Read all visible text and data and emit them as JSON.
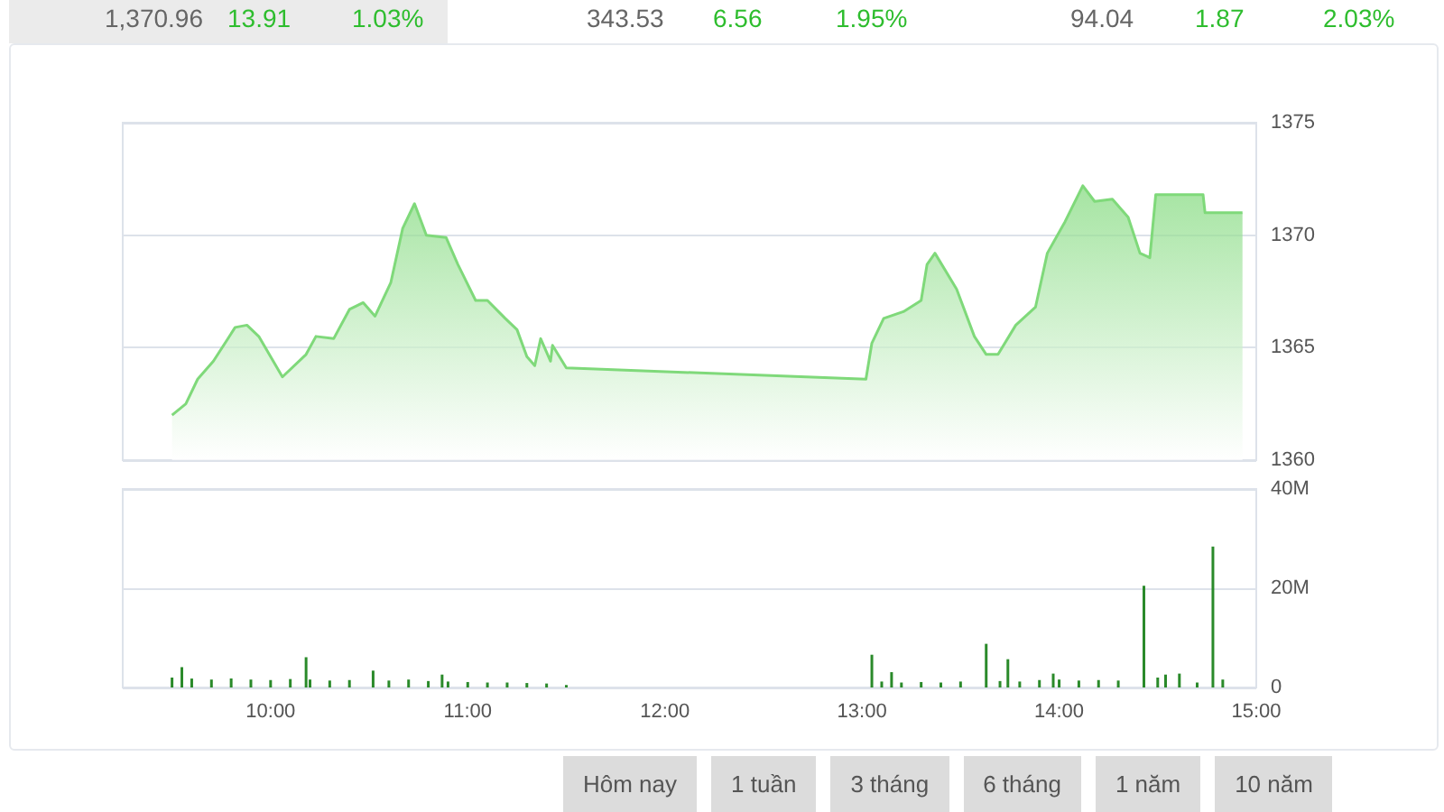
{
  "chart_data": [
    {
      "type": "area",
      "x": [
        9.5,
        9.57,
        9.63,
        9.71,
        9.82,
        9.88,
        9.94,
        10.06,
        10.18,
        10.23,
        10.32,
        10.4,
        10.47,
        10.53,
        10.61,
        10.67,
        10.73,
        10.79,
        10.89,
        10.95,
        11.04,
        11.1,
        11.19,
        11.25,
        11.3,
        11.34,
        11.37,
        11.42,
        11.43,
        11.5,
        13.02,
        13.05,
        13.11,
        13.21,
        13.3,
        13.33,
        13.37,
        13.48,
        13.57,
        13.63,
        13.69,
        13.78,
        13.88,
        13.94,
        14.03,
        14.12,
        14.18,
        14.27,
        14.35,
        14.41,
        14.46,
        14.49,
        14.73,
        14.74,
        14.93
      ],
      "series": [
        {
          "color": "#7fd97a",
          "values": [
            1362.0,
            1362.5,
            1363.6,
            1364.4,
            1365.9,
            1366.0,
            1365.5,
            1363.7,
            1364.7,
            1365.5,
            1365.4,
            1366.7,
            1367.0,
            1366.4,
            1367.9,
            1370.3,
            1371.4,
            1370.0,
            1369.9,
            1368.7,
            1367.1,
            1367.1,
            1366.3,
            1365.8,
            1364.6,
            1364.2,
            1365.4,
            1364.4,
            1365.1,
            1364.1,
            1363.6,
            1365.2,
            1366.3,
            1366.6,
            1367.1,
            1368.7,
            1369.2,
            1367.6,
            1365.5,
            1364.7,
            1364.7,
            1366.0,
            1366.8,
            1369.2,
            1370.6,
            1372.2,
            1371.5,
            1371.6,
            1370.8,
            1369.2,
            1369.0,
            1371.8,
            1371.8,
            1371.0,
            1371.0
          ]
        }
      ],
      "xlim": [
        9.25,
        15
      ],
      "xticks": [
        {
          "value": 10,
          "label": null
        },
        {
          "value": 11,
          "label": null
        },
        {
          "value": 12,
          "label": null
        },
        {
          "value": 13,
          "label": null
        },
        {
          "value": 14,
          "label": null
        },
        {
          "value": 15,
          "label": null
        }
      ],
      "ylim": [
        1360,
        1375
      ],
      "yticks": [
        1360,
        1365,
        1370,
        1375
      ],
      "grid": "y",
      "tick_labels": "y"
    },
    {
      "type": "bar",
      "x": [
        9.5,
        9.55,
        9.6,
        9.7,
        9.8,
        9.9,
        10.0,
        10.1,
        10.18,
        10.2,
        10.3,
        10.4,
        10.52,
        10.6,
        10.7,
        10.8,
        10.87,
        10.9,
        11.0,
        11.1,
        11.2,
        11.3,
        11.4,
        11.5,
        13.05,
        13.1,
        13.15,
        13.2,
        13.3,
        13.4,
        13.5,
        13.63,
        13.7,
        13.74,
        13.8,
        13.9,
        13.97,
        14.0,
        14.1,
        14.2,
        14.3,
        14.43,
        14.5,
        14.54,
        14.61,
        14.7,
        14.78,
        14.83
      ],
      "series": [
        {
          "color": "#2a8a2a",
          "values": [
            2.0,
            4.1,
            1.8,
            1.6,
            1.8,
            1.6,
            1.5,
            1.7,
            6.1,
            1.6,
            1.4,
            1.5,
            3.4,
            1.4,
            1.6,
            1.3,
            2.6,
            1.2,
            1.1,
            1.0,
            1.0,
            0.9,
            0.8,
            0.5,
            6.6,
            1.2,
            3.1,
            1.0,
            1.1,
            1.0,
            1.2,
            8.8,
            1.3,
            5.7,
            1.2,
            1.5,
            2.8,
            1.6,
            1.4,
            1.5,
            1.4,
            20.5,
            2.0,
            2.6,
            2.8,
            1.0,
            28.4,
            1.6
          ]
        }
      ],
      "xlim": [
        9.25,
        15
      ],
      "xticks": [
        {
          "value": 10,
          "label": "10:00"
        },
        {
          "value": 11,
          "label": "11:00"
        },
        {
          "value": 12,
          "label": "12:00"
        },
        {
          "value": 13,
          "label": "13:00"
        },
        {
          "value": 14,
          "label": "14:00"
        },
        {
          "value": 15,
          "label": "15:00"
        }
      ],
      "ylim": [
        0,
        40
      ],
      "yticks": [
        {
          "value": 0,
          "label": "0"
        },
        {
          "value": 20,
          "label": "20M"
        },
        {
          "value": 40,
          "label": "40M"
        }
      ],
      "grid": "y"
    },
    {
      "type": "other",
      "annotations": [
        "1,370.96",
        "13.91",
        "1.03%",
        "343.53",
        "6.56",
        "1.95%",
        "94.04",
        "1.87",
        "2.03%"
      ]
    },
    {
      "type": "other",
      "annotations": [
        "Hôm nay",
        "1 tuần",
        "3 tháng",
        "6 tháng",
        "1 năm",
        "10 năm"
      ]
    }
  ]
}
